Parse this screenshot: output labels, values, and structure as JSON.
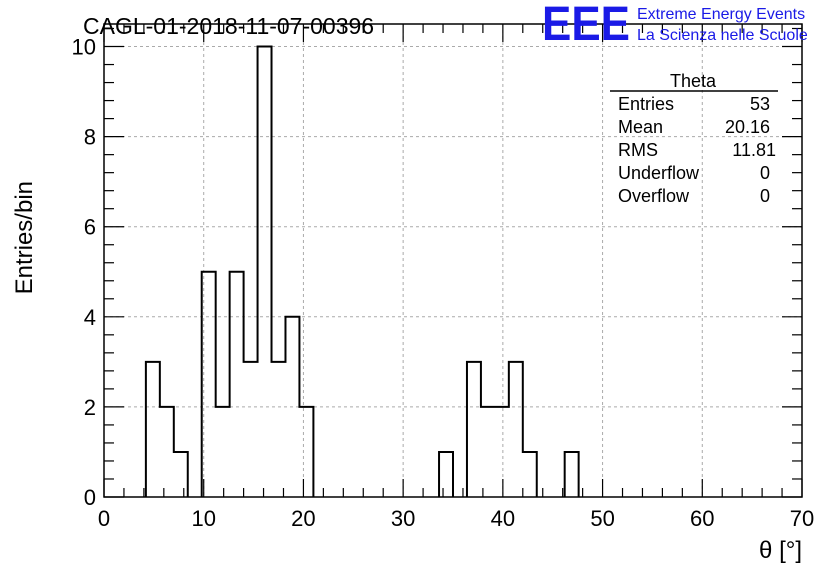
{
  "title": "CAGL-01-2018-11-07-00396",
  "logo": {
    "mark": "EEE",
    "line1": "Extreme Energy Events",
    "line2": "La Scienza nelle Scuole",
    "color": "#1a1ae6"
  },
  "stats": {
    "name": "Theta",
    "rows": [
      {
        "label": "Entries",
        "value": "53"
      },
      {
        "label": "Mean",
        "value": "20.16"
      },
      {
        "label": "RMS",
        "value": "11.81"
      },
      {
        "label": "Underflow",
        "value": "0"
      },
      {
        "label": "Overflow",
        "value": "0"
      }
    ]
  },
  "chart_data": {
    "type": "histogram",
    "xlabel": "θ [°]",
    "ylabel": "Entries/bin",
    "xlim": [
      0,
      70
    ],
    "ylim": [
      0,
      10.5
    ],
    "bin_width": 1.4,
    "x_ticks": [
      0,
      10,
      20,
      30,
      40,
      50,
      60,
      70
    ],
    "y_ticks": [
      0,
      2,
      4,
      6,
      8,
      10
    ],
    "grid": true,
    "bin_low_edges": [
      4.2,
      5.6,
      7.0,
      9.8,
      11.2,
      12.6,
      14.0,
      15.4,
      16.8,
      18.2,
      19.6,
      33.6,
      36.4,
      37.8,
      39.2,
      40.6,
      42.0,
      46.2
    ],
    "values": [
      3,
      2,
      1,
      5,
      2,
      5,
      3,
      10,
      3,
      4,
      2,
      1,
      3,
      2,
      2,
      3,
      1,
      1
    ]
  }
}
